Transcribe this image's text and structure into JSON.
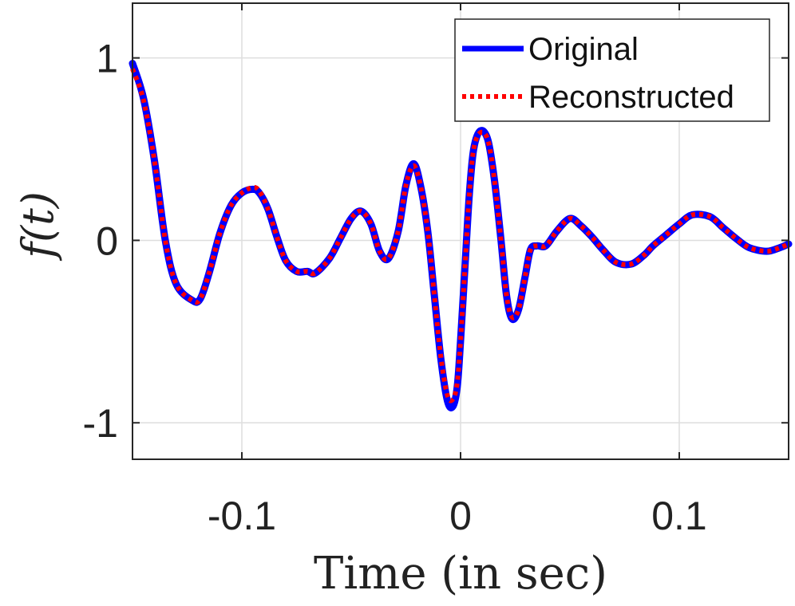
{
  "chart_data": {
    "type": "line",
    "title": "",
    "xlabel": "Time (in sec)",
    "ylabel": "f(t)",
    "xlim": [
      -0.15,
      0.15
    ],
    "ylim": [
      -1.2,
      1.3
    ],
    "grid": true,
    "legend_position": "top-right",
    "x_ticks": [
      -0.1,
      0,
      0.1
    ],
    "x_tick_labels": [
      "-0.1",
      "0",
      "0.1"
    ],
    "y_ticks": [
      -1,
      0,
      1
    ],
    "y_tick_labels": [
      "-1",
      "0",
      "1"
    ],
    "series": [
      {
        "name": "Original",
        "color": "#0000ff",
        "style": "solid",
        "x": [
          -0.15,
          -0.145,
          -0.14,
          -0.135,
          -0.13,
          -0.1225,
          -0.119,
          -0.115,
          -0.11,
          -0.105,
          -0.1,
          -0.095,
          -0.092,
          -0.088,
          -0.084,
          -0.08,
          -0.075,
          -0.07,
          -0.0665,
          -0.06,
          -0.055,
          -0.05,
          -0.0455,
          -0.041,
          -0.037,
          -0.033,
          -0.0285,
          -0.025,
          -0.0215,
          -0.0183,
          -0.015,
          -0.012,
          -0.009,
          -0.006,
          -0.0035,
          -0.0015,
          0.0,
          0.002,
          0.004,
          0.006,
          0.009,
          0.0125,
          0.0155,
          0.0185,
          0.021,
          0.0235,
          0.0265,
          0.0295,
          0.032,
          0.035,
          0.039,
          0.044,
          0.05,
          0.055,
          0.06,
          0.065,
          0.071,
          0.078,
          0.084,
          0.088,
          0.094,
          0.1,
          0.106,
          0.114,
          0.12,
          0.126,
          0.132,
          0.14,
          0.146,
          0.15
        ],
        "y": [
          0.97,
          0.78,
          0.44,
          0.0,
          -0.24,
          -0.33,
          -0.32,
          -0.18,
          0.04,
          0.19,
          0.26,
          0.28,
          0.26,
          0.17,
          0.02,
          -0.11,
          -0.17,
          -0.17,
          -0.18,
          -0.1,
          0.01,
          0.12,
          0.16,
          0.09,
          -0.06,
          -0.1,
          0.05,
          0.3,
          0.42,
          0.3,
          0.05,
          -0.3,
          -0.65,
          -0.88,
          -0.91,
          -0.8,
          -0.55,
          -0.15,
          0.25,
          0.5,
          0.6,
          0.55,
          0.33,
          0.0,
          -0.3,
          -0.43,
          -0.38,
          -0.2,
          -0.05,
          -0.03,
          -0.03,
          0.05,
          0.12,
          0.08,
          0.02,
          -0.05,
          -0.12,
          -0.13,
          -0.08,
          -0.03,
          0.03,
          0.09,
          0.14,
          0.13,
          0.07,
          0.01,
          -0.04,
          -0.06,
          -0.04,
          -0.02
        ]
      },
      {
        "name": "Reconstructed",
        "color": "#ff0000",
        "style": "dotted",
        "x": [
          -0.15,
          -0.145,
          -0.14,
          -0.135,
          -0.13,
          -0.1225,
          -0.119,
          -0.115,
          -0.11,
          -0.105,
          -0.1,
          -0.095,
          -0.092,
          -0.088,
          -0.084,
          -0.08,
          -0.075,
          -0.07,
          -0.0665,
          -0.06,
          -0.055,
          -0.05,
          -0.0455,
          -0.041,
          -0.037,
          -0.033,
          -0.0285,
          -0.025,
          -0.0215,
          -0.0183,
          -0.015,
          -0.012,
          -0.009,
          -0.006,
          -0.0035,
          -0.0015,
          0.0,
          0.002,
          0.004,
          0.006,
          0.009,
          0.0125,
          0.0155,
          0.0185,
          0.021,
          0.0235,
          0.0265,
          0.0295,
          0.032,
          0.035,
          0.039,
          0.044,
          0.05,
          0.055,
          0.06,
          0.065,
          0.071,
          0.078,
          0.084,
          0.088,
          0.094,
          0.1,
          0.106,
          0.114,
          0.12,
          0.126,
          0.132,
          0.14,
          0.146,
          0.15
        ],
        "y": [
          0.94,
          0.77,
          0.44,
          0.0,
          -0.24,
          -0.33,
          -0.32,
          -0.18,
          0.04,
          0.19,
          0.26,
          0.29,
          0.27,
          0.17,
          0.02,
          -0.11,
          -0.17,
          -0.17,
          -0.18,
          -0.1,
          0.01,
          0.12,
          0.16,
          0.09,
          -0.06,
          -0.1,
          0.05,
          0.3,
          0.41,
          0.3,
          0.05,
          -0.3,
          -0.64,
          -0.85,
          -0.87,
          -0.78,
          -0.55,
          -0.15,
          0.25,
          0.5,
          0.59,
          0.55,
          0.33,
          0.0,
          -0.3,
          -0.42,
          -0.38,
          -0.2,
          -0.05,
          -0.03,
          -0.03,
          0.05,
          0.12,
          0.08,
          0.02,
          -0.05,
          -0.12,
          -0.13,
          -0.08,
          -0.03,
          0.03,
          0.09,
          0.14,
          0.13,
          0.07,
          0.01,
          -0.04,
          -0.06,
          -0.04,
          -0.02
        ]
      }
    ]
  }
}
